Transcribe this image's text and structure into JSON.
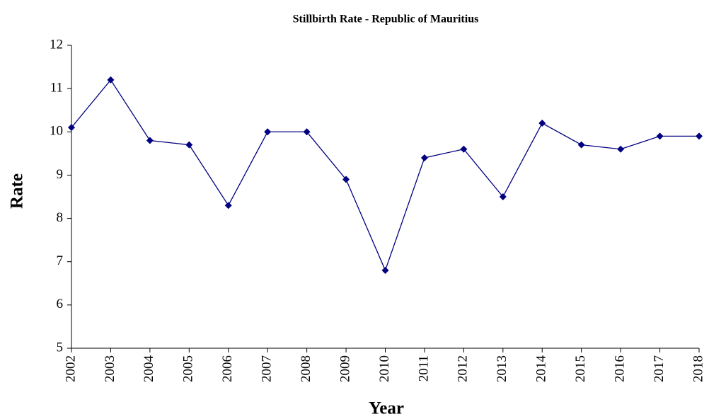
{
  "chart_data": {
    "type": "line",
    "title": "Stillbirth Rate - Republic of Mauritius",
    "x_label": "Year",
    "y_label": "Rate",
    "x": [
      2002,
      2003,
      2004,
      2005,
      2006,
      2007,
      2008,
      2009,
      2010,
      2011,
      2012,
      2013,
      2014,
      2015,
      2016,
      2017,
      2018
    ],
    "series": [
      {
        "name": "Stillbirth Rate",
        "color": "#000080",
        "values": [
          10.1,
          11.2,
          9.8,
          9.7,
          8.3,
          10.0,
          10.0,
          8.9,
          6.8,
          9.4,
          9.6,
          8.5,
          10.2,
          9.7,
          9.6,
          9.9,
          9.9
        ]
      }
    ],
    "xlim": [
      2002,
      2018
    ],
    "xticks": [
      2002,
      2003,
      2004,
      2005,
      2006,
      2007,
      2008,
      2009,
      2010,
      2011,
      2012,
      2013,
      2014,
      2015,
      2016,
      2017,
      2018
    ],
    "ylim": [
      5,
      12
    ],
    "yticks": [
      5,
      6,
      7,
      8,
      9,
      10,
      11,
      12
    ],
    "grid": false,
    "legend": false
  }
}
